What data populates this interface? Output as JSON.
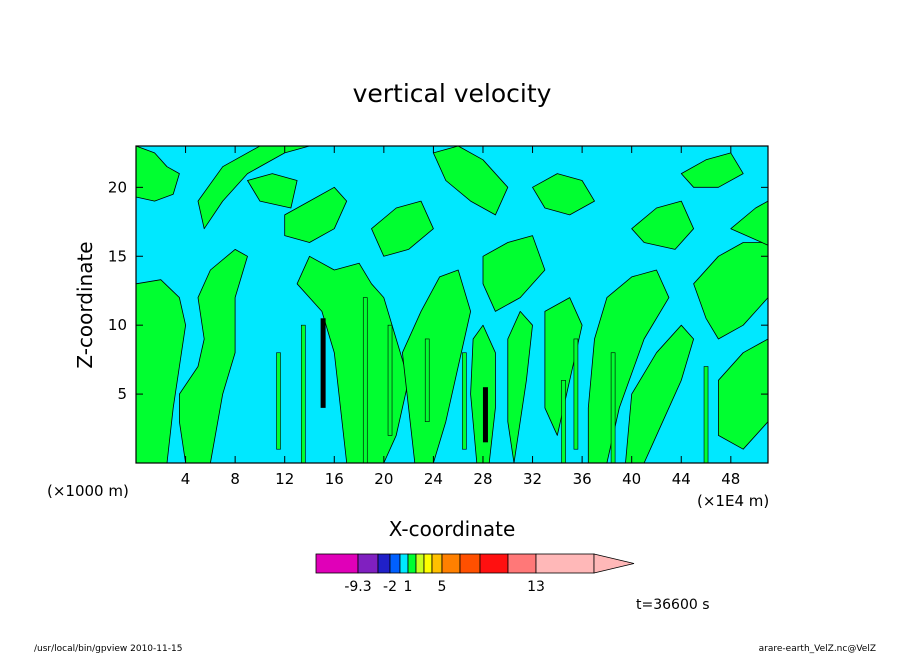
{
  "chart_data": {
    "type": "heatmap",
    "title": "vertical velocity",
    "xlabel": "X-coordinate",
    "ylabel": "Z-coordinate",
    "x_unit_left": "(×1000 m)",
    "x_unit_right": "(×1E4 m)",
    "xlim": [
      0,
      51
    ],
    "ylim": [
      0,
      23
    ],
    "x_ticks": [
      "4",
      "8",
      "12",
      "16",
      "20",
      "24",
      "28",
      "32",
      "36",
      "40",
      "44",
      "48"
    ],
    "y_ticks": [
      "5",
      "10",
      "15",
      "20"
    ],
    "colorbar": {
      "colors": [
        "#e000b8",
        "#8020c0",
        "#2020c8",
        "#0060ff",
        "#00e8ff",
        "#00ff30",
        "#c8ff20",
        "#ffff00",
        "#ffc000",
        "#ff8000",
        "#ff5000",
        "#ff1010",
        "#ff7878",
        "#ffb8b8"
      ],
      "labels": [
        "-9.3",
        "-2",
        "1",
        "5",
        "13"
      ]
    },
    "fill_colors": {
      "negative": "#00e8ff",
      "positive": "#00ff30",
      "strong": "#000000"
    },
    "time_label": "t=36600 s"
  },
  "footer": {
    "left": "/usr/local/bin/gpview   2010-11-15",
    "right": "arare-earth_VelZ.nc@VelZ"
  }
}
